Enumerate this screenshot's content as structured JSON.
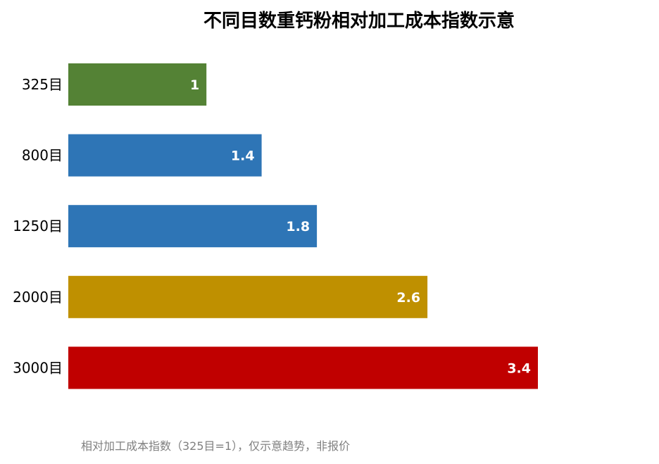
{
  "chart_data": {
    "type": "bar",
    "orientation": "horizontal",
    "title": "不同目数重钙粉相对加工成本指数示意",
    "categories": [
      "325目",
      "800目",
      "1250目",
      "2000目",
      "3000目"
    ],
    "values": [
      1,
      1.4,
      1.8,
      2.6,
      3.4
    ],
    "value_labels": [
      "1",
      "1.4",
      "1.8",
      "2.6",
      "3.4"
    ],
    "bar_colors": [
      "#548235",
      "#2E75B6",
      "#2E75B6",
      "#BF9000",
      "#C00000"
    ],
    "xlim": [
      0,
      3.4
    ],
    "xlabel": "",
    "ylabel": "",
    "grid": false,
    "legend": "none"
  },
  "footnote": "相对加工成本指数（325目=1），仅示意趋势，非报价"
}
